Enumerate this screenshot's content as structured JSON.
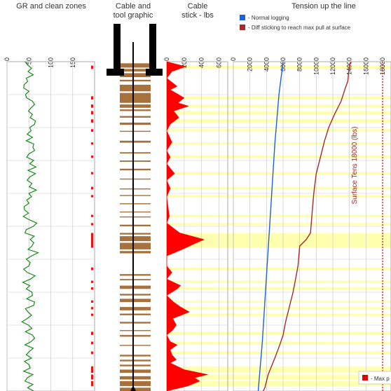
{
  "chart_data": [
    {
      "type": "line",
      "title": "GR and clean zones",
      "xlabel": "",
      "xlim": [
        0,
        200
      ],
      "xticks": [
        "0",
        "50",
        "100",
        "150"
      ],
      "series": [
        {
          "points": [
            [
              41,
              0.0
            ],
            [
              47,
              0.01
            ],
            [
              56,
              0.02
            ],
            [
              48,
              0.03
            ],
            [
              60,
              0.04
            ],
            [
              44,
              0.05
            ],
            [
              47,
              0.06
            ],
            [
              39,
              0.07
            ],
            [
              38,
              0.08
            ],
            [
              50,
              0.09
            ],
            [
              42,
              0.1
            ],
            [
              45,
              0.11
            ],
            [
              58,
              0.12
            ],
            [
              63,
              0.13
            ],
            [
              55,
              0.14
            ],
            [
              49,
              0.15
            ],
            [
              58,
              0.16
            ],
            [
              53,
              0.17
            ],
            [
              65,
              0.18
            ],
            [
              63,
              0.19
            ],
            [
              52,
              0.2
            ],
            [
              55,
              0.21
            ],
            [
              46,
              0.22
            ],
            [
              58,
              0.23
            ],
            [
              44,
              0.24
            ],
            [
              61,
              0.25
            ],
            [
              59,
              0.26
            ],
            [
              63,
              0.27
            ],
            [
              50,
              0.28
            ],
            [
              45,
              0.29
            ],
            [
              61,
              0.3
            ],
            [
              52,
              0.31
            ],
            [
              66,
              0.32
            ],
            [
              48,
              0.33
            ],
            [
              65,
              0.34
            ],
            [
              52,
              0.35
            ],
            [
              46,
              0.36
            ],
            [
              57,
              0.37
            ],
            [
              51,
              0.38
            ],
            [
              67,
              0.39
            ],
            [
              50,
              0.4
            ],
            [
              56,
              0.41
            ],
            [
              45,
              0.42
            ],
            [
              50,
              0.43
            ],
            [
              39,
              0.44
            ],
            [
              40,
              0.45
            ],
            [
              49,
              0.46
            ],
            [
              37,
              0.47
            ],
            [
              51,
              0.48
            ],
            [
              68,
              0.49
            ],
            [
              60,
              0.5
            ],
            [
              44,
              0.51
            ],
            [
              41,
              0.52
            ],
            [
              62,
              0.53
            ],
            [
              53,
              0.54
            ],
            [
              61,
              0.55
            ],
            [
              57,
              0.56
            ],
            [
              48,
              0.57
            ],
            [
              71,
              0.58
            ],
            [
              56,
              0.59
            ],
            [
              44,
              0.6
            ],
            [
              53,
              0.61
            ],
            [
              50,
              0.62
            ],
            [
              38,
              0.63
            ],
            [
              46,
              0.64
            ],
            [
              64,
              0.65
            ],
            [
              54,
              0.66
            ],
            [
              36,
              0.67
            ],
            [
              52,
              0.68
            ],
            [
              44,
              0.69
            ],
            [
              57,
              0.7
            ],
            [
              58,
              0.71
            ],
            [
              45,
              0.72
            ],
            [
              63,
              0.73
            ],
            [
              61,
              0.74
            ],
            [
              42,
              0.75
            ],
            [
              48,
              0.76
            ],
            [
              56,
              0.77
            ],
            [
              46,
              0.78
            ],
            [
              34,
              0.79
            ],
            [
              49,
              0.8
            ],
            [
              57,
              0.81
            ],
            [
              42,
              0.82
            ],
            [
              58,
              0.83
            ],
            [
              63,
              0.84
            ],
            [
              55,
              0.85
            ],
            [
              41,
              0.86
            ],
            [
              60,
              0.87
            ],
            [
              51,
              0.88
            ],
            [
              44,
              0.89
            ],
            [
              56,
              0.9
            ],
            [
              40,
              0.91
            ],
            [
              50,
              0.92
            ],
            [
              53,
              0.93
            ],
            [
              38,
              0.94
            ],
            [
              59,
              0.95
            ],
            [
              46,
              0.96
            ],
            [
              41,
              0.97
            ],
            [
              59,
              0.98
            ],
            [
              47,
              0.99
            ],
            [
              61,
              1.0
            ]
          ]
        }
      ],
      "clean_zones": [
        [
          0.012,
          0.022
        ],
        [
          0.105,
          0.115
        ],
        [
          0.13,
          0.14
        ],
        [
          0.15,
          0.16
        ],
        [
          0.175,
          0.185
        ],
        [
          0.205,
          0.213
        ],
        [
          0.245,
          0.252
        ],
        [
          0.285,
          0.292
        ],
        [
          0.335,
          0.342
        ],
        [
          0.38,
          0.388
        ],
        [
          0.405,
          0.412
        ],
        [
          0.465,
          0.472
        ],
        [
          0.49,
          0.497
        ],
        [
          0.52,
          0.565
        ],
        [
          0.625,
          0.633
        ],
        [
          0.665,
          0.672
        ],
        [
          0.685,
          0.692
        ],
        [
          0.725,
          0.732
        ],
        [
          0.745,
          0.752
        ],
        [
          0.765,
          0.772
        ],
        [
          0.82,
          0.83
        ],
        [
          0.85,
          0.858
        ],
        [
          0.88,
          0.888
        ],
        [
          0.925,
          0.945
        ],
        [
          0.95,
          0.965
        ],
        [
          0.97,
          0.985
        ]
      ]
    },
    {
      "type": "area",
      "title": "Cable and\ntool graphic",
      "bands": [
        [
          0.005,
          0.018
        ],
        [
          0.022,
          0.03
        ],
        [
          0.035,
          0.047
        ],
        [
          0.055,
          0.06
        ],
        [
          0.07,
          0.09
        ],
        [
          0.095,
          0.125
        ],
        [
          0.13,
          0.14
        ],
        [
          0.145,
          0.15
        ],
        [
          0.165,
          0.17
        ],
        [
          0.185,
          0.192
        ],
        [
          0.21,
          0.213
        ],
        [
          0.24,
          0.246
        ],
        [
          0.275,
          0.279
        ],
        [
          0.3,
          0.304
        ],
        [
          0.325,
          0.33
        ],
        [
          0.355,
          0.358
        ],
        [
          0.385,
          0.388
        ],
        [
          0.405,
          0.408
        ],
        [
          0.43,
          0.433
        ],
        [
          0.455,
          0.458
        ],
        [
          0.47,
          0.473
        ],
        [
          0.495,
          0.5
        ],
        [
          0.52,
          0.525
        ],
        [
          0.53,
          0.545
        ],
        [
          0.55,
          0.57
        ],
        [
          0.575,
          0.582
        ],
        [
          0.645,
          0.65
        ],
        [
          0.66,
          0.664
        ],
        [
          0.68,
          0.69
        ],
        [
          0.705,
          0.71
        ],
        [
          0.72,
          0.73
        ],
        [
          0.745,
          0.755
        ],
        [
          0.765,
          0.77
        ],
        [
          0.79,
          0.795
        ],
        [
          0.815,
          0.818
        ],
        [
          0.83,
          0.835
        ],
        [
          0.86,
          0.863
        ],
        [
          0.89,
          0.895
        ],
        [
          0.905,
          0.91
        ],
        [
          0.92,
          0.925
        ],
        [
          0.935,
          0.945
        ],
        [
          0.955,
          0.965
        ],
        [
          0.97,
          0.985
        ],
        [
          0.99,
          1.0
        ]
      ]
    },
    {
      "type": "area",
      "title": "Cable\nstick - lbs",
      "xlim": [
        0,
        700
      ],
      "xticks": [
        "0",
        "200",
        "400",
        "600"
      ],
      "series": [
        {
          "points": [
            [
              0,
              0.0
            ],
            [
              220,
              0.015
            ],
            [
              60,
              0.03
            ],
            [
              0,
              0.05
            ],
            [
              120,
              0.075
            ],
            [
              40,
              0.085
            ],
            [
              200,
              0.11
            ],
            [
              130,
              0.125
            ],
            [
              250,
              0.135
            ],
            [
              80,
              0.15
            ],
            [
              140,
              0.17
            ],
            [
              40,
              0.19
            ],
            [
              0,
              0.21
            ],
            [
              60,
              0.245
            ],
            [
              0,
              0.27
            ],
            [
              40,
              0.29
            ],
            [
              0,
              0.31
            ],
            [
              90,
              0.34
            ],
            [
              0,
              0.36
            ],
            [
              40,
              0.385
            ],
            [
              0,
              0.41
            ],
            [
              30,
              0.47
            ],
            [
              0,
              0.49
            ],
            [
              150,
              0.52
            ],
            [
              430,
              0.54
            ],
            [
              300,
              0.555
            ],
            [
              180,
              0.57
            ],
            [
              0,
              0.59
            ],
            [
              0,
              0.62
            ],
            [
              60,
              0.64
            ],
            [
              0,
              0.66
            ],
            [
              160,
              0.68
            ],
            [
              120,
              0.69
            ],
            [
              0,
              0.71
            ],
            [
              80,
              0.73
            ],
            [
              160,
              0.745
            ],
            [
              260,
              0.76
            ],
            [
              70,
              0.78
            ],
            [
              110,
              0.8
            ],
            [
              70,
              0.815
            ],
            [
              0,
              0.83
            ],
            [
              40,
              0.85
            ],
            [
              120,
              0.86
            ],
            [
              40,
              0.875
            ],
            [
              60,
              0.89
            ],
            [
              110,
              0.905
            ],
            [
              40,
              0.915
            ],
            [
              200,
              0.935
            ],
            [
              470,
              0.95
            ],
            [
              320,
              0.96
            ],
            [
              380,
              0.97
            ],
            [
              240,
              0.985
            ],
            [
              0,
              1.0
            ]
          ]
        }
      ]
    },
    {
      "type": "line",
      "title": "Tension up the line",
      "xlim": [
        0,
        18000
      ],
      "xticks": [
        "0",
        "2000",
        "4000",
        "6000",
        "8000",
        "10000",
        "12000",
        "14000",
        "16000",
        "18000"
      ],
      "legend_position": "top-left",
      "series": [
        {
          "name": "- Normal logging",
          "color": "#1f5fd8",
          "points": [
            [
              6000,
              0.0
            ],
            [
              5500,
              0.1
            ],
            [
              5000,
              0.25
            ],
            [
              4500,
              0.45
            ],
            [
              4000,
              0.65
            ],
            [
              3500,
              0.85
            ],
            [
              3000,
              1.0
            ]
          ]
        },
        {
          "name": "- Diff sticking to reach max pull at surface",
          "color": "#a52a2a",
          "points": [
            [
              14200,
              0.0
            ],
            [
              14000,
              0.01
            ],
            [
              13800,
              0.06
            ],
            [
              13500,
              0.08
            ],
            [
              13000,
              0.12
            ],
            [
              12200,
              0.16
            ],
            [
              11500,
              0.2
            ],
            [
              11000,
              0.24
            ],
            [
              10500,
              0.29
            ],
            [
              10000,
              0.34
            ],
            [
              9700,
              0.4
            ],
            [
              9500,
              0.46
            ],
            [
              9300,
              0.52
            ],
            [
              8800,
              0.54
            ],
            [
              8000,
              0.56
            ],
            [
              7800,
              0.62
            ],
            [
              7500,
              0.66
            ],
            [
              7200,
              0.7
            ],
            [
              6700,
              0.75
            ],
            [
              6300,
              0.79
            ],
            [
              6000,
              0.83
            ],
            [
              5600,
              0.86
            ],
            [
              5000,
              0.9
            ],
            [
              4200,
              0.95
            ],
            [
              3800,
              0.99
            ],
            [
              3600,
              1.0
            ]
          ]
        }
      ],
      "annotations": [
        {
          "text": "Surface Tens 18000 (lbs)",
          "color": "#a52a2a"
        },
        {
          "text": "- Max p",
          "color": "#e00000"
        }
      ],
      "reference_lines": [
        {
          "x": 18000,
          "color": "#e00000"
        }
      ]
    }
  ],
  "colors": {
    "gr_line": "#1a8a1a",
    "clean_marker": "#ee1111",
    "cable_band": "#a8703a",
    "stick_fill": "#ff0000",
    "highlight_band": "#ffffb0",
    "grid": "#cccccc",
    "tool": "#000000"
  }
}
